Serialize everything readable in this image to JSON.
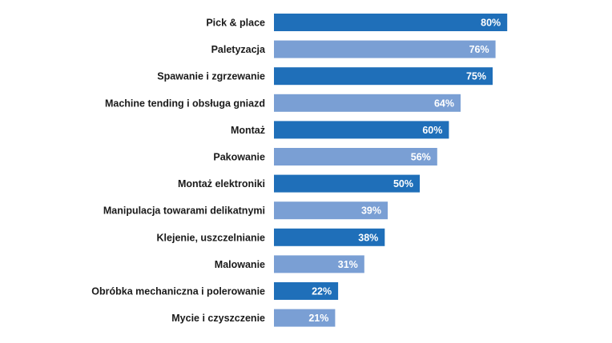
{
  "chart_data": {
    "type": "bar",
    "orientation": "horizontal",
    "categories": [
      "Pick & place",
      "Paletyzacja",
      "Spawanie i zgrzewanie",
      "Machine tending i obsługa gniazd",
      "Montaż",
      "Pakowanie",
      "Montaż elektroniki",
      "Manipulacja towarami delikatnymi",
      "Klejenie, uszczelnianie",
      "Malowanie",
      "Obróbka mechaniczna i polerowanie",
      "Mycie i czyszczenie"
    ],
    "values": [
      80,
      76,
      75,
      64,
      60,
      56,
      50,
      39,
      38,
      31,
      22,
      21
    ],
    "value_labels": [
      "80%",
      "76%",
      "75%",
      "64%",
      "60%",
      "56%",
      "50%",
      "39%",
      "38%",
      "31%",
      "22%",
      "21%"
    ],
    "unit": "%",
    "xlim": [
      0,
      100
    ],
    "grid": false,
    "colors": [
      "#1f6fb9",
      "#7a9fd4"
    ]
  }
}
